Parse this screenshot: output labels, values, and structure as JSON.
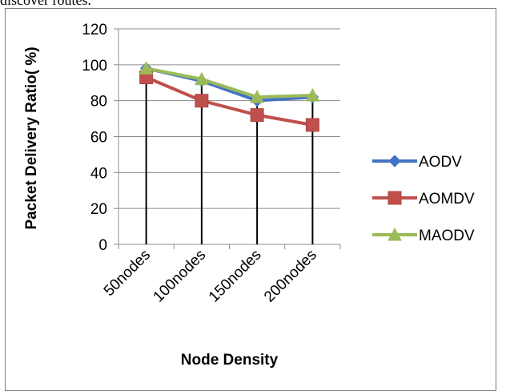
{
  "page": {
    "caption_fragment": "discover routes."
  },
  "chart_data": {
    "type": "line",
    "categories": [
      "50nodes",
      "100nodes",
      "150nodes",
      "200nodes"
    ],
    "series": [
      {
        "name": "AODV",
        "values": [
          98,
          91,
          80,
          82
        ],
        "color": "#4472c4",
        "marker": "diamond"
      },
      {
        "name": "AOMDV",
        "values": [
          93,
          80,
          72,
          66.5
        ],
        "color": "#c0504d",
        "marker": "square"
      },
      {
        "name": "MAODV",
        "values": [
          98,
          92,
          82,
          83
        ],
        "color": "#9bbb59",
        "marker": "triangle"
      }
    ],
    "title": "",
    "xlabel": "Node Density",
    "ylabel": "Packet Delivery Ratio( %)",
    "ylim": [
      0,
      120
    ],
    "yticks": [
      0,
      20,
      40,
      60,
      80,
      100,
      120
    ],
    "grid": true,
    "legend_position": "right",
    "drop_lines": true
  }
}
